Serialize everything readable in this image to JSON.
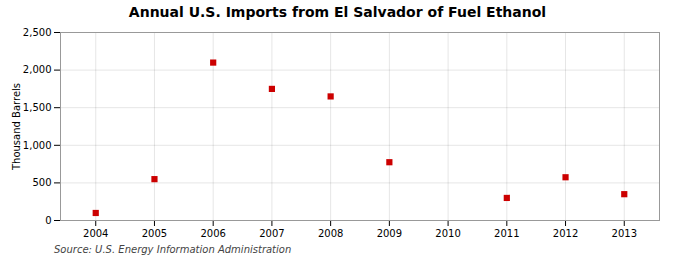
{
  "chart_data": {
    "type": "scatter",
    "title": "Annual U.S. Imports from El Salvador of Fuel Ethanol",
    "ylabel": "Thousand Barrels",
    "source": "Source: U.S. Energy Information Administration",
    "x": [
      2004,
      2005,
      2006,
      2007,
      2008,
      2009,
      2011,
      2012,
      2013
    ],
    "values": [
      100,
      550,
      2100,
      1750,
      1650,
      775,
      300,
      575,
      350
    ],
    "xlim": [
      2003.4,
      2013.6
    ],
    "xticks": [
      2004,
      2005,
      2006,
      2007,
      2008,
      2009,
      2010,
      2011,
      2012,
      2013
    ],
    "ylim": [
      0,
      2500
    ],
    "yticks": [
      0,
      500,
      {
        "value": 1000,
        "label": "1,000"
      },
      {
        "value": 1500,
        "label": "1,500"
      },
      {
        "value": 2000,
        "label": "2,000"
      },
      {
        "value": 2500,
        "label": "2,500"
      }
    ],
    "color": "#cc0000",
    "marker": "square",
    "grid": true
  }
}
